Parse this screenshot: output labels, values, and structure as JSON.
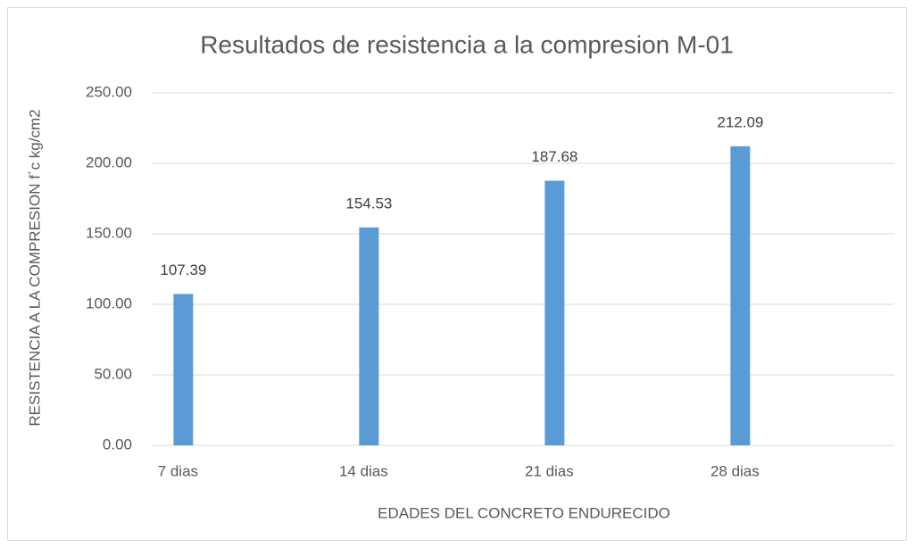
{
  "chart_data": {
    "type": "bar",
    "title": "Resultados de resistencia a la compresion M-01",
    "x_label": "EDADES DEL CONCRETO ENDURECIDO",
    "y_label": "RESISTENCIA A LA COMPRESION f´c kg/cm2",
    "categories": [
      "7 dias",
      "14 dias",
      "21 dias",
      "28 dias"
    ],
    "values": [
      107.39,
      154.53,
      187.68,
      212.09
    ],
    "color": "#5b9bd5",
    "ylim": [
      0,
      250
    ],
    "yticks": [
      {
        "value": 0,
        "label": "0.00"
      },
      {
        "value": 50,
        "label": "50.00"
      },
      {
        "value": 100,
        "label": "100.00"
      },
      {
        "value": 150,
        "label": "150.00"
      },
      {
        "value": 200,
        "label": "200.00"
      },
      {
        "value": 250,
        "label": "250.00"
      }
    ],
    "grid": true
  }
}
